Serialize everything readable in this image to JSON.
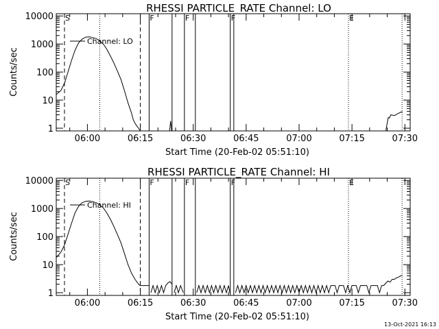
{
  "footer": {
    "timestamp": "13-Oct-2021 16:13"
  },
  "chart_data": [
    {
      "type": "line",
      "title": "RHESSI PARTICLE_RATE Channel: LO",
      "xlabel": "Start Time (20-Feb-02 05:51:10)",
      "ylabel": "Counts/sec",
      "y_scale": "log",
      "ylim": [
        0.8,
        12000
      ],
      "xlim_minutes_after_0550": [
        1.17,
        101.5
      ],
      "x_ticks": [
        {
          "label": "06:00",
          "minutes": 10
        },
        {
          "label": "06:15",
          "minutes": 25
        },
        {
          "label": "06:30",
          "minutes": 40
        },
        {
          "label": "06:45",
          "minutes": 55
        },
        {
          "label": "07:00",
          "minutes": 70
        },
        {
          "label": "07:15",
          "minutes": 85
        },
        {
          "label": "07:30",
          "minutes": 100
        }
      ],
      "y_ticks": [
        {
          "label": "1",
          "value": 1
        },
        {
          "label": "10",
          "value": 10
        },
        {
          "label": "100",
          "value": 100
        },
        {
          "label": "1000",
          "value": 1000
        },
        {
          "label": "10000",
          "value": 10000
        }
      ],
      "legend": "Channel: LO",
      "series": [
        {
          "name": "Channel: LO",
          "points": [
            [
              1.2,
              16
            ],
            [
              2.5,
              22
            ],
            [
              3.5,
              40
            ],
            [
              4.5,
              100
            ],
            [
              5.5,
              260
            ],
            [
              6.5,
              600
            ],
            [
              7.5,
              1100
            ],
            [
              8.5,
              1500
            ],
            [
              9.5,
              1750
            ],
            [
              10.5,
              1800
            ],
            [
              11.5,
              1700
            ],
            [
              12.5,
              1550
            ],
            [
              13.5,
              1300
            ],
            [
              14.5,
              1000
            ],
            [
              15.5,
              650
            ],
            [
              16.5,
              380
            ],
            [
              17.5,
              210
            ],
            [
              18.5,
              110
            ],
            [
              19.5,
              55
            ],
            [
              20.5,
              22
            ],
            [
              21.5,
              8
            ],
            [
              22.5,
              3.5
            ],
            [
              23,
              2
            ],
            [
              23.5,
              1.5
            ],
            [
              24,
              1.2
            ],
            [
              24.5,
              1.0
            ],
            [
              25,
              0.8
            ]
          ],
          "extra_segments": [
            [
              [
                33.3,
                0.8
              ],
              [
                33.6,
                1.8
              ],
              [
                33.9,
                0.8
              ]
            ],
            [
              [
                94.6,
                0.8
              ],
              [
                95,
                1.6
              ],
              [
                95.3,
                2.4
              ],
              [
                95.6,
                2.3
              ],
              [
                96,
                3.0
              ],
              [
                97,
                2.8
              ],
              [
                98,
                3.3
              ],
              [
                99,
                3.8
              ],
              [
                99.3,
                3.8
              ]
            ]
          ]
        }
      ],
      "mode_flags": [
        {
          "label": "S",
          "minutes": 3.5
        },
        {
          "label": "F",
          "minutes": 27.5
        },
        {
          "label": "F",
          "minutes": 37.5
        },
        {
          "label": "F",
          "minutes": 50.5
        },
        {
          "label": "E",
          "minutes": 84.0
        }
      ],
      "gap_boxes": [
        [
          27.5,
          34.0
        ],
        [
          37.5,
          40.6
        ],
        [
          50.5,
          51.5
        ]
      ],
      "dashed_lines_minutes": [
        3.5,
        25.0
      ],
      "dotted_lines_minutes": [
        13.5,
        84.0,
        99.2
      ]
    },
    {
      "type": "line",
      "title": "RHESSI PARTICLE_RATE Channel: HI",
      "xlabel": "Start Time (20-Feb-02 05:51:10)",
      "ylabel": "Counts/sec",
      "y_scale": "log",
      "ylim": [
        0.8,
        12000
      ],
      "xlim_minutes_after_0550": [
        1.17,
        101.5
      ],
      "x_ticks": [
        {
          "label": "06:00",
          "minutes": 10
        },
        {
          "label": "06:15",
          "minutes": 25
        },
        {
          "label": "06:30",
          "minutes": 40
        },
        {
          "label": "06:45",
          "minutes": 55
        },
        {
          "label": "07:00",
          "minutes": 70
        },
        {
          "label": "07:15",
          "minutes": 85
        },
        {
          "label": "07:30",
          "minutes": 100
        }
      ],
      "y_ticks": [
        {
          "label": "1",
          "value": 1
        },
        {
          "label": "10",
          "value": 10
        },
        {
          "label": "100",
          "value": 100
        },
        {
          "label": "1000",
          "value": 1000
        },
        {
          "label": "10000",
          "value": 10000
        }
      ],
      "legend": "Channel: HI",
      "series": [
        {
          "name": "Channel: HI",
          "points": [
            [
              1.2,
              18
            ],
            [
              2.5,
              28
            ],
            [
              3.5,
              50
            ],
            [
              4.5,
              120
            ],
            [
              5.5,
              300
            ],
            [
              6.5,
              700
            ],
            [
              7.5,
              1200
            ],
            [
              8.5,
              1600
            ],
            [
              9.5,
              1800
            ],
            [
              10.5,
              1850
            ],
            [
              11.5,
              1750
            ],
            [
              12.5,
              1600
            ],
            [
              13.5,
              1350
            ],
            [
              14.5,
              1050
            ],
            [
              15.5,
              700
            ],
            [
              16.5,
              420
            ],
            [
              17.5,
              230
            ],
            [
              18.5,
              120
            ],
            [
              19.5,
              60
            ],
            [
              20.5,
              25
            ],
            [
              21.5,
              10
            ],
            [
              22.5,
              5
            ],
            [
              23.5,
              3
            ],
            [
              24.5,
              2
            ],
            [
              25,
              1.8
            ],
            [
              26,
              1.8
            ],
            [
              27,
              1.8
            ],
            [
              27.5,
              1.8
            ]
          ],
          "extra_segments": [
            [
              [
                28,
                1
              ],
              [
                28.6,
                1.8
              ],
              [
                29.2,
                1
              ],
              [
                29.8,
                1.8
              ],
              [
                30.4,
                1
              ],
              [
                31,
                1.8
              ],
              [
                31.6,
                1
              ],
              [
                32.2,
                1.8
              ],
              [
                32.8,
                2.2
              ],
              [
                33.4,
                2.5
              ],
              [
                34,
                2.0
              ]
            ],
            [
              [
                34.6,
                1
              ],
              [
                35.2,
                1.8
              ],
              [
                35.8,
                1
              ],
              [
                36.4,
                1.8
              ],
              [
                37.2,
                1
              ]
            ],
            [
              [
                41,
                1
              ],
              [
                41.6,
                1.8
              ],
              [
                42.2,
                1
              ],
              [
                42.8,
                1.8
              ],
              [
                43.4,
                1
              ],
              [
                44,
                1.8
              ],
              [
                44.6,
                1
              ],
              [
                45.2,
                1.8
              ],
              [
                45.8,
                1
              ],
              [
                46.4,
                1.8
              ],
              [
                47,
                1
              ],
              [
                47.6,
                1.8
              ],
              [
                48.2,
                1
              ],
              [
                48.8,
                1.8
              ],
              [
                49.4,
                1
              ],
              [
                50,
                1.8
              ],
              [
                50.4,
                1
              ]
            ],
            [
              [
                52,
                1
              ],
              [
                52.6,
                1.8
              ],
              [
                53.2,
                1
              ],
              [
                53.8,
                1.8
              ],
              [
                54.4,
                1
              ],
              [
                55,
                1.8
              ],
              [
                55.6,
                1
              ],
              [
                56.2,
                1.8
              ],
              [
                56.8,
                1
              ],
              [
                57.4,
                1.8
              ],
              [
                58,
                1
              ],
              [
                58.6,
                1.8
              ],
              [
                59.2,
                1
              ],
              [
                59.8,
                1.8
              ],
              [
                60.4,
                1
              ],
              [
                61,
                1.8
              ],
              [
                61.6,
                1
              ],
              [
                62.2,
                1.8
              ],
              [
                62.8,
                1
              ],
              [
                63.4,
                1.8
              ],
              [
                64,
                1
              ],
              [
                64.6,
                1.8
              ],
              [
                65.2,
                1
              ],
              [
                65.8,
                1.8
              ],
              [
                66.4,
                1
              ],
              [
                67,
                1.8
              ],
              [
                67.6,
                1
              ],
              [
                68.2,
                1.8
              ],
              [
                68.8,
                1
              ],
              [
                69.4,
                1.8
              ],
              [
                70,
                1
              ],
              [
                70.6,
                1.8
              ],
              [
                71.2,
                1
              ],
              [
                71.8,
                1.8
              ],
              [
                72.4,
                1
              ],
              [
                73,
                1.8
              ],
              [
                73.6,
                1
              ],
              [
                74.2,
                1.8
              ],
              [
                74.8,
                1
              ],
              [
                75.4,
                1.8
              ],
              [
                76,
                1
              ],
              [
                76.6,
                1.8
              ],
              [
                77.2,
                1
              ],
              [
                77.8,
                1.8
              ],
              [
                78.4,
                1
              ],
              [
                79,
                1.8
              ],
              [
                79.6,
                1.8
              ],
              [
                80.2,
                1.8
              ],
              [
                80.8,
                1
              ],
              [
                81.4,
                1.8
              ],
              [
                82,
                1.8
              ],
              [
                82.6,
                1.8
              ],
              [
                83.2,
                1
              ],
              [
                83.8,
                1.8
              ],
              [
                84.4,
                1
              ],
              [
                85,
                1.8
              ],
              [
                85.6,
                1.8
              ],
              [
                86.2,
                1.8
              ],
              [
                86.8,
                1
              ],
              [
                87.4,
                1.8
              ],
              [
                88,
                1.8
              ],
              [
                88.6,
                1.8
              ],
              [
                89.2,
                1.8
              ],
              [
                89.8,
                1
              ],
              [
                90.4,
                1.8
              ],
              [
                91,
                1.8
              ],
              [
                91.6,
                1.8
              ],
              [
                92.2,
                1.8
              ],
              [
                92.8,
                1
              ],
              [
                93.4,
                1.8
              ],
              [
                94,
                1.8
              ],
              [
                94.6,
                2.2
              ],
              [
                95.2,
                2.6
              ],
              [
                95.8,
                2.4
              ],
              [
                96.4,
                3.0
              ],
              [
                97,
                3.0
              ],
              [
                97.6,
                3.4
              ],
              [
                98.2,
                3.6
              ],
              [
                98.8,
                4.0
              ],
              [
                99.3,
                4.2
              ]
            ]
          ]
        }
      ],
      "mode_flags": [
        {
          "label": "S",
          "minutes": 3.5
        },
        {
          "label": "F",
          "minutes": 27.5
        },
        {
          "label": "F",
          "minutes": 37.5
        },
        {
          "label": "F",
          "minutes": 50.5
        },
        {
          "label": "E",
          "minutes": 84.0
        }
      ],
      "gap_boxes": [
        [
          27.5,
          34.0
        ],
        [
          37.5,
          40.6
        ],
        [
          50.5,
          51.5
        ]
      ],
      "dashed_lines_minutes": [
        3.5,
        25.0
      ],
      "dotted_lines_minutes": [
        13.5,
        84.0,
        99.2
      ]
    }
  ]
}
